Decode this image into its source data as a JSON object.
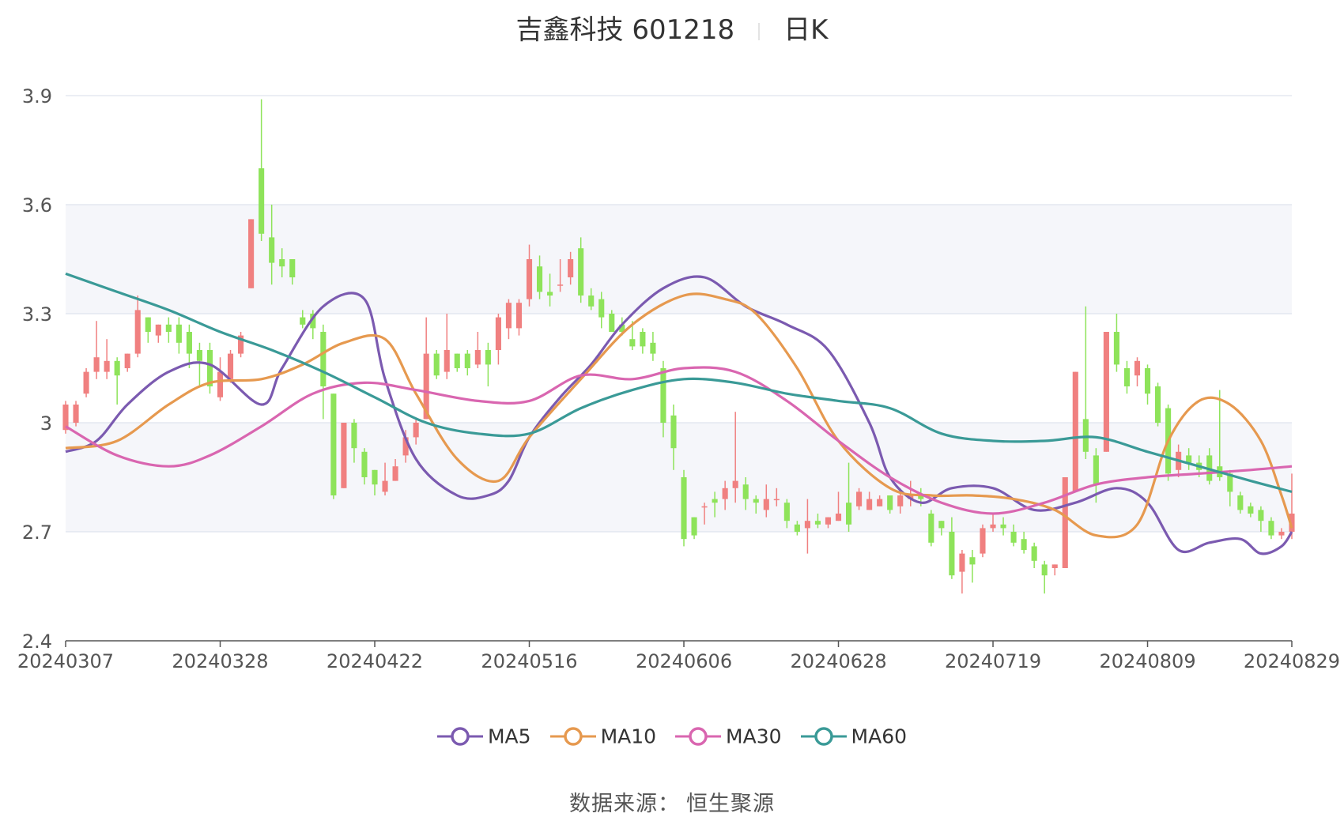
{
  "title": {
    "name": "吉鑫科技 601218",
    "period": "日K"
  },
  "source": {
    "label": "数据来源：",
    "value": "恒生聚源"
  },
  "colors": {
    "up": "#f08080",
    "down": "#8ee35a",
    "MA5": "#7b5ab0",
    "MA10": "#e6994f",
    "MA30": "#d966b0",
    "MA60": "#3a9a97",
    "grid": "#dfe3ee",
    "bandFill": "#f5f6fa"
  },
  "chart_data": {
    "type": "candlestick",
    "ylim": [
      2.4,
      3.9
    ],
    "yticks": [
      "2.4",
      "2.7",
      "3",
      "3.3",
      "3.6",
      "3.9"
    ],
    "xticks": [
      {
        "index": 0,
        "label": "20240307"
      },
      {
        "index": 15,
        "label": "20240328"
      },
      {
        "index": 30,
        "label": "20240422"
      },
      {
        "index": 45,
        "label": "20240516"
      },
      {
        "index": 60,
        "label": "20240606"
      },
      {
        "index": 75,
        "label": "20240628"
      },
      {
        "index": 90,
        "label": "20240719"
      },
      {
        "index": 105,
        "label": "20240809"
      },
      {
        "index": 119,
        "label": "20240829"
      }
    ],
    "candles": [
      [
        2.98,
        3.05,
        3.06,
        2.97
      ],
      [
        3.0,
        3.05,
        3.06,
        2.99
      ],
      [
        3.08,
        3.14,
        3.15,
        3.07
      ],
      [
        3.14,
        3.18,
        3.28,
        3.12
      ],
      [
        3.14,
        3.17,
        3.23,
        3.12
      ],
      [
        3.17,
        3.13,
        3.18,
        3.05
      ],
      [
        3.15,
        3.19,
        3.19,
        3.14
      ],
      [
        3.19,
        3.31,
        3.35,
        3.18
      ],
      [
        3.29,
        3.25,
        3.29,
        3.22
      ],
      [
        3.24,
        3.27,
        3.27,
        3.22
      ],
      [
        3.27,
        3.25,
        3.29,
        3.22
      ],
      [
        3.27,
        3.22,
        3.29,
        3.19
      ],
      [
        3.25,
        3.19,
        3.27,
        3.15
      ],
      [
        3.2,
        3.17,
        3.22,
        3.1
      ],
      [
        3.2,
        3.1,
        3.22,
        3.08
      ],
      [
        3.07,
        3.14,
        3.18,
        3.06
      ],
      [
        3.12,
        3.19,
        3.2,
        3.11
      ],
      [
        3.19,
        3.24,
        3.25,
        3.18
      ],
      [
        3.37,
        3.56,
        3.56,
        3.37
      ],
      [
        3.7,
        3.52,
        3.89,
        3.5
      ],
      [
        3.51,
        3.44,
        3.6,
        3.38
      ],
      [
        3.45,
        3.43,
        3.48,
        3.4
      ],
      [
        3.45,
        3.4,
        3.45,
        3.38
      ],
      [
        3.29,
        3.27,
        3.31,
        3.26
      ],
      [
        3.3,
        3.26,
        3.31,
        3.23
      ],
      [
        3.25,
        3.1,
        3.27,
        3.01
      ],
      [
        3.08,
        2.8,
        3.08,
        2.79
      ],
      [
        2.82,
        3.0,
        3.0,
        2.82
      ],
      [
        3.0,
        2.93,
        3.01,
        2.89
      ],
      [
        2.92,
        2.85,
        2.93,
        2.83
      ],
      [
        2.87,
        2.83,
        2.87,
        2.8
      ],
      [
        2.81,
        2.84,
        2.89,
        2.8
      ],
      [
        2.84,
        2.88,
        2.9,
        2.84
      ],
      [
        2.91,
        2.96,
        2.98,
        2.89
      ],
      [
        2.96,
        3.0,
        3.01,
        2.94
      ],
      [
        3.01,
        3.19,
        3.29,
        3.01
      ],
      [
        3.19,
        3.13,
        3.2,
        3.12
      ],
      [
        3.14,
        3.2,
        3.3,
        3.12
      ],
      [
        3.19,
        3.15,
        3.19,
        3.14
      ],
      [
        3.19,
        3.15,
        3.2,
        3.13
      ],
      [
        3.16,
        3.2,
        3.25,
        3.15
      ],
      [
        3.2,
        3.16,
        3.22,
        3.1
      ],
      [
        3.2,
        3.29,
        3.3,
        3.16
      ],
      [
        3.26,
        3.33,
        3.34,
        3.23
      ],
      [
        3.26,
        3.33,
        3.34,
        3.24
      ],
      [
        3.34,
        3.45,
        3.49,
        3.32
      ],
      [
        3.43,
        3.36,
        3.46,
        3.34
      ],
      [
        3.36,
        3.35,
        3.41,
        3.32
      ],
      [
        3.38,
        3.38,
        3.45,
        3.36
      ],
      [
        3.4,
        3.45,
        3.47,
        3.38
      ],
      [
        3.48,
        3.35,
        3.51,
        3.33
      ],
      [
        3.35,
        3.32,
        3.37,
        3.31
      ],
      [
        3.34,
        3.29,
        3.36,
        3.26
      ],
      [
        3.3,
        3.25,
        3.31,
        3.25
      ],
      [
        3.27,
        3.25,
        3.29,
        3.24
      ],
      [
        3.23,
        3.21,
        3.28,
        3.2
      ],
      [
        3.25,
        3.21,
        3.26,
        3.19
      ],
      [
        3.22,
        3.19,
        3.25,
        3.17
      ],
      [
        3.15,
        3.0,
        3.17,
        2.96
      ],
      [
        3.02,
        2.93,
        3.05,
        2.87
      ],
      [
        2.85,
        2.68,
        2.87,
        2.66
      ],
      [
        2.74,
        2.69,
        2.74,
        2.68
      ],
      [
        2.77,
        2.77,
        2.78,
        2.72
      ],
      [
        2.79,
        2.78,
        2.81,
        2.74
      ],
      [
        2.79,
        2.82,
        2.84,
        2.76
      ],
      [
        2.82,
        2.84,
        3.03,
        2.78
      ],
      [
        2.83,
        2.79,
        2.85,
        2.76
      ],
      [
        2.79,
        2.78,
        2.8,
        2.75
      ],
      [
        2.76,
        2.79,
        2.83,
        2.74
      ],
      [
        2.79,
        2.79,
        2.82,
        2.77
      ],
      [
        2.78,
        2.73,
        2.79,
        2.71
      ],
      [
        2.72,
        2.7,
        2.73,
        2.69
      ],
      [
        2.71,
        2.73,
        2.79,
        2.64
      ],
      [
        2.73,
        2.72,
        2.75,
        2.71
      ],
      [
        2.72,
        2.74,
        2.74,
        2.71
      ],
      [
        2.73,
        2.75,
        2.81,
        2.73
      ],
      [
        2.78,
        2.72,
        2.89,
        2.7
      ],
      [
        2.77,
        2.81,
        2.82,
        2.76
      ],
      [
        2.76,
        2.79,
        2.81,
        2.76
      ],
      [
        2.77,
        2.79,
        2.8,
        2.77
      ],
      [
        2.8,
        2.76,
        2.8,
        2.75
      ],
      [
        2.77,
        2.8,
        2.82,
        2.75
      ],
      [
        2.79,
        2.8,
        2.84,
        2.77
      ],
      [
        2.8,
        2.79,
        2.82,
        2.77
      ],
      [
        2.75,
        2.67,
        2.76,
        2.66
      ],
      [
        2.73,
        2.71,
        2.73,
        2.69
      ],
      [
        2.7,
        2.58,
        2.74,
        2.57
      ],
      [
        2.59,
        2.64,
        2.65,
        2.53
      ],
      [
        2.63,
        2.61,
        2.65,
        2.56
      ],
      [
        2.64,
        2.71,
        2.72,
        2.63
      ],
      [
        2.71,
        2.72,
        2.75,
        2.7
      ],
      [
        2.72,
        2.71,
        2.74,
        2.69
      ],
      [
        2.7,
        2.67,
        2.72,
        2.66
      ],
      [
        2.68,
        2.65,
        2.7,
        2.64
      ],
      [
        2.66,
        2.62,
        2.67,
        2.6
      ],
      [
        2.61,
        2.58,
        2.62,
        2.53
      ],
      [
        2.6,
        2.61,
        2.61,
        2.58
      ],
      [
        2.6,
        2.85,
        2.85,
        2.6
      ],
      [
        2.81,
        3.14,
        3.14,
        2.81
      ],
      [
        3.01,
        2.92,
        3.32,
        2.9
      ],
      [
        2.91,
        2.83,
        2.93,
        2.78
      ],
      [
        2.92,
        3.25,
        3.25,
        2.92
      ],
      [
        3.25,
        3.16,
        3.3,
        3.14
      ],
      [
        3.15,
        3.1,
        3.17,
        3.08
      ],
      [
        3.13,
        3.17,
        3.18,
        3.1
      ],
      [
        3.15,
        3.08,
        3.16,
        3.05
      ],
      [
        3.1,
        3.0,
        3.11,
        2.99
      ],
      [
        3.04,
        2.86,
        3.05,
        2.84
      ],
      [
        2.87,
        2.92,
        2.94,
        2.85
      ],
      [
        2.91,
        2.89,
        2.93,
        2.87
      ],
      [
        2.89,
        2.87,
        2.91,
        2.85
      ],
      [
        2.91,
        2.84,
        2.93,
        2.83
      ],
      [
        2.88,
        2.85,
        3.09,
        2.84
      ],
      [
        2.86,
        2.81,
        2.87,
        2.77
      ],
      [
        2.8,
        2.76,
        2.81,
        2.75
      ],
      [
        2.77,
        2.75,
        2.78,
        2.74
      ],
      [
        2.76,
        2.73,
        2.77,
        2.7
      ],
      [
        2.73,
        2.69,
        2.74,
        2.68
      ],
      [
        2.69,
        2.7,
        2.71,
        2.68
      ],
      [
        2.7,
        2.75,
        2.86,
        2.68
      ]
    ],
    "series": [
      {
        "name": "MA5",
        "color": "#7b5ab0",
        "points": [
          [
            0,
            2.92
          ],
          [
            3,
            2.95
          ],
          [
            6,
            3.05
          ],
          [
            10,
            3.14
          ],
          [
            14,
            3.16
          ],
          [
            19,
            3.05
          ],
          [
            21,
            3.15
          ],
          [
            25,
            3.32
          ],
          [
            29,
            3.34
          ],
          [
            31,
            3.12
          ],
          [
            34,
            2.9
          ],
          [
            38,
            2.8
          ],
          [
            41,
            2.8
          ],
          [
            43,
            2.84
          ],
          [
            45,
            2.96
          ],
          [
            48,
            3.07
          ],
          [
            51,
            3.16
          ],
          [
            54,
            3.27
          ],
          [
            58,
            3.37
          ],
          [
            62,
            3.4
          ],
          [
            66,
            3.32
          ],
          [
            70,
            3.27
          ],
          [
            74,
            3.2
          ],
          [
            78,
            3.0
          ],
          [
            80,
            2.85
          ],
          [
            83,
            2.78
          ],
          [
            86,
            2.82
          ],
          [
            90,
            2.82
          ],
          [
            94,
            2.76
          ],
          [
            98,
            2.78
          ],
          [
            102,
            2.82
          ],
          [
            105,
            2.78
          ],
          [
            108,
            2.65
          ],
          [
            111,
            2.67
          ],
          [
            114,
            2.68
          ],
          [
            116,
            2.64
          ],
          [
            118,
            2.66
          ],
          [
            119,
            2.7
          ]
        ]
      },
      {
        "name": "MA10",
        "color": "#e6994f",
        "points": [
          [
            0,
            2.93
          ],
          [
            5,
            2.95
          ],
          [
            10,
            3.05
          ],
          [
            14,
            3.11
          ],
          [
            19,
            3.12
          ],
          [
            23,
            3.16
          ],
          [
            27,
            3.22
          ],
          [
            31,
            3.23
          ],
          [
            34,
            3.08
          ],
          [
            38,
            2.9
          ],
          [
            42,
            2.84
          ],
          [
            45,
            2.96
          ],
          [
            50,
            3.12
          ],
          [
            55,
            3.27
          ],
          [
            60,
            3.35
          ],
          [
            64,
            3.34
          ],
          [
            67,
            3.3
          ],
          [
            71,
            3.15
          ],
          [
            75,
            2.95
          ],
          [
            80,
            2.82
          ],
          [
            84,
            2.8
          ],
          [
            88,
            2.8
          ],
          [
            92,
            2.79
          ],
          [
            96,
            2.76
          ],
          [
            100,
            2.69
          ],
          [
            104,
            2.72
          ],
          [
            107,
            2.95
          ],
          [
            110,
            3.06
          ],
          [
            113,
            3.05
          ],
          [
            116,
            2.95
          ],
          [
            118,
            2.8
          ],
          [
            119,
            2.71
          ]
        ]
      },
      {
        "name": "MA30",
        "color": "#d966b0",
        "points": [
          [
            0,
            2.99
          ],
          [
            5,
            2.91
          ],
          [
            10,
            2.88
          ],
          [
            14,
            2.91
          ],
          [
            19,
            2.99
          ],
          [
            24,
            3.08
          ],
          [
            29,
            3.11
          ],
          [
            34,
            3.09
          ],
          [
            40,
            3.06
          ],
          [
            45,
            3.06
          ],
          [
            50,
            3.13
          ],
          [
            55,
            3.12
          ],
          [
            60,
            3.15
          ],
          [
            65,
            3.14
          ],
          [
            70,
            3.06
          ],
          [
            75,
            2.95
          ],
          [
            80,
            2.85
          ],
          [
            85,
            2.78
          ],
          [
            90,
            2.75
          ],
          [
            95,
            2.78
          ],
          [
            100,
            2.83
          ],
          [
            105,
            2.85
          ],
          [
            110,
            2.86
          ],
          [
            115,
            2.87
          ],
          [
            119,
            2.88
          ]
        ]
      },
      {
        "name": "MA60",
        "color": "#3a9a97",
        "points": [
          [
            0,
            3.41
          ],
          [
            5,
            3.36
          ],
          [
            10,
            3.31
          ],
          [
            15,
            3.25
          ],
          [
            20,
            3.2
          ],
          [
            25,
            3.14
          ],
          [
            30,
            3.07
          ],
          [
            35,
            3.0
          ],
          [
            40,
            2.97
          ],
          [
            45,
            2.97
          ],
          [
            50,
            3.04
          ],
          [
            55,
            3.09
          ],
          [
            60,
            3.12
          ],
          [
            65,
            3.11
          ],
          [
            70,
            3.08
          ],
          [
            75,
            3.06
          ],
          [
            80,
            3.04
          ],
          [
            85,
            2.97
          ],
          [
            90,
            2.95
          ],
          [
            95,
            2.95
          ],
          [
            100,
            2.96
          ],
          [
            105,
            2.92
          ],
          [
            110,
            2.88
          ],
          [
            115,
            2.84
          ],
          [
            119,
            2.81
          ]
        ]
      }
    ],
    "legend": [
      "MA5",
      "MA10",
      "MA30",
      "MA60"
    ],
    "legend_position": "bottom-center",
    "grid": true
  }
}
